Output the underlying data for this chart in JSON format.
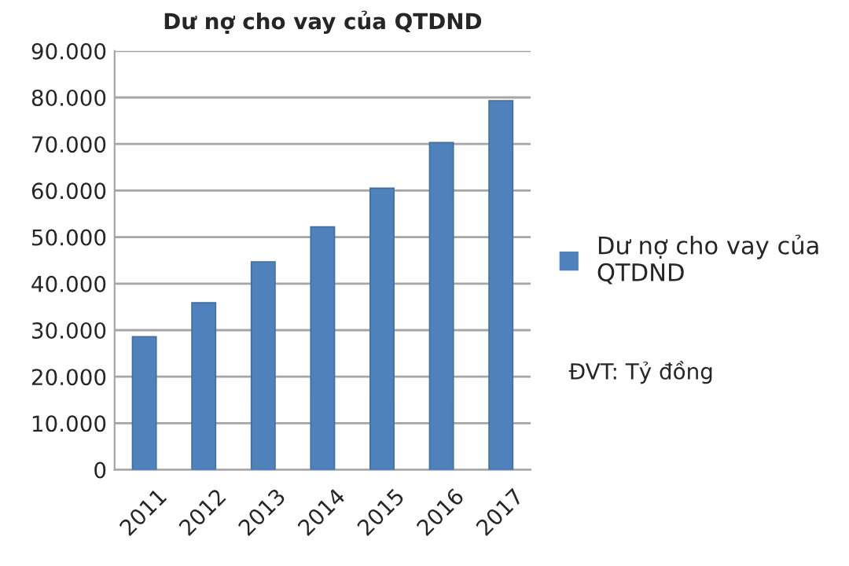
{
  "chart_data": {
    "type": "bar",
    "title": "Dư nợ cho vay của QTDND",
    "categories": [
      "2011",
      "2012",
      "2013",
      "2014",
      "2015",
      "2016",
      "2017"
    ],
    "series": [
      {
        "name": "Dư nợ cho vay của\nQTDND",
        "color": "#4f81bd",
        "values": [
          28600,
          35900,
          44700,
          52200,
          60500,
          70300,
          79300
        ]
      }
    ],
    "ylim": [
      0,
      90000
    ],
    "yticks": [
      0,
      {
        "value": 10000,
        "label": "10.000"
      },
      {
        "value": 20000,
        "label": "20.000"
      },
      {
        "value": 30000,
        "label": "30.000"
      },
      {
        "value": 40000,
        "label": "40.000"
      },
      {
        "value": 50000,
        "label": "50.000"
      },
      {
        "value": 60000,
        "label": "60.000"
      },
      {
        "value": 70000,
        "label": "70.000"
      },
      {
        "value": 80000,
        "label": "80.000"
      },
      {
        "value": 90000,
        "label": "90.000"
      }
    ],
    "grid": "y",
    "legend": "right",
    "annotations": [
      "ĐVT: Tỷ đồng"
    ]
  }
}
